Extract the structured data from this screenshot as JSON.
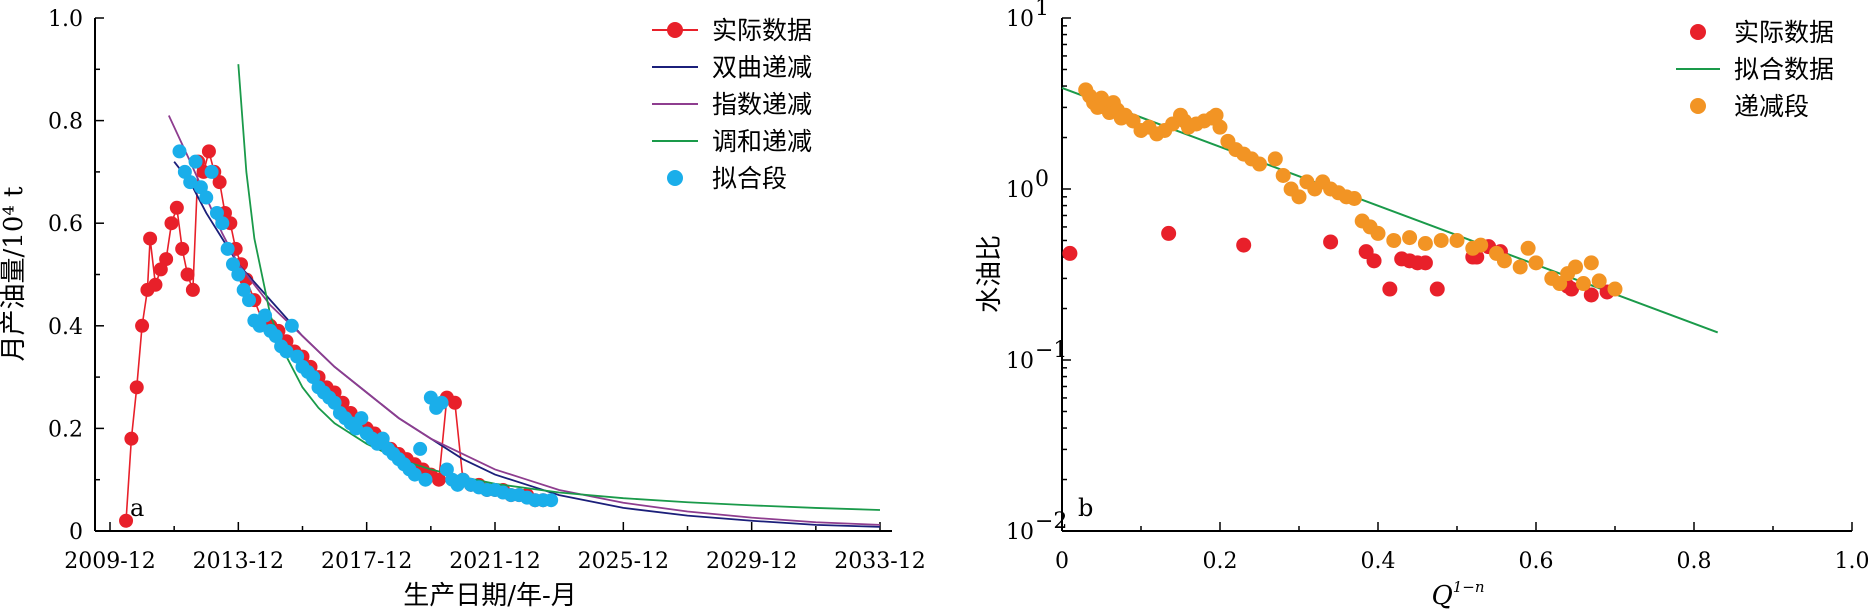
{
  "chart_data": [
    {
      "type": "line",
      "panel_label": "a",
      "xlabel": "生产日期/年-月",
      "ylabel": "月产油量/10⁴ t",
      "x_tick_labels": [
        "2009-12",
        "2013-12",
        "2017-12",
        "2021-12",
        "2025-12",
        "2029-12",
        "2033-12"
      ],
      "y_tick_labels": [
        "0",
        "0.2",
        "0.4",
        "0.6",
        "0.8",
        "1.0"
      ],
      "xlim": [
        "2009-12",
        "2033-12"
      ],
      "ylim": [
        0,
        1.0
      ],
      "legend_position": "top-right",
      "series": [
        {
          "name": "实际数据",
          "kind": "line-marker",
          "color": "#e8202a",
          "x": [
            "2010-06",
            "2010-08",
            "2010-10",
            "2010-12",
            "2011-02",
            "2011-03",
            "2011-05",
            "2011-07",
            "2011-09",
            "2011-11",
            "2012-01",
            "2012-03",
            "2012-05",
            "2012-07",
            "2012-09",
            "2012-11",
            "2013-01",
            "2013-03",
            "2013-05",
            "2013-07",
            "2013-09",
            "2013-11",
            "2014-01",
            "2014-03",
            "2014-06",
            "2014-09",
            "2014-12",
            "2015-03",
            "2015-06",
            "2015-09",
            "2015-12",
            "2016-03",
            "2016-06",
            "2016-09",
            "2016-12",
            "2017-03",
            "2017-06",
            "2017-09",
            "2017-12",
            "2018-03",
            "2018-06",
            "2018-09",
            "2018-12",
            "2019-03",
            "2019-06",
            "2019-09",
            "2019-12",
            "2020-03",
            "2020-06",
            "2020-09",
            "2020-12",
            "2021-03",
            "2021-06",
            "2021-09",
            "2021-12",
            "2022-03",
            "2022-06",
            "2022-09",
            "2022-12",
            "2023-03",
            "2023-06"
          ],
          "y": [
            0.02,
            0.18,
            0.28,
            0.4,
            0.47,
            0.57,
            0.48,
            0.51,
            0.53,
            0.6,
            0.63,
            0.55,
            0.5,
            0.47,
            0.72,
            0.7,
            0.74,
            0.7,
            0.68,
            0.62,
            0.6,
            0.55,
            0.52,
            0.49,
            0.45,
            0.41,
            0.4,
            0.39,
            0.37,
            0.35,
            0.34,
            0.32,
            0.3,
            0.28,
            0.27,
            0.25,
            0.23,
            0.21,
            0.2,
            0.19,
            0.17,
            0.16,
            0.15,
            0.14,
            0.13,
            0.12,
            0.11,
            0.1,
            0.26,
            0.25,
            0.1,
            0.09,
            0.09,
            0.08,
            0.08,
            0.08,
            0.07,
            0.07,
            0.07,
            0.06,
            0.06
          ]
        },
        {
          "name": "双曲递减",
          "kind": "line",
          "color": "#1b1f7a",
          "x": [
            "2011-12",
            "2012-06",
            "2012-12",
            "2013-06",
            "2013-12",
            "2014-12",
            "2015-12",
            "2016-12",
            "2017-12",
            "2018-12",
            "2019-12",
            "2020-12",
            "2021-12",
            "2022-12",
            "2023-12",
            "2025-12",
            "2027-12",
            "2029-12",
            "2031-12",
            "2033-12"
          ],
          "y": [
            0.72,
            0.68,
            0.62,
            0.57,
            0.52,
            0.45,
            0.38,
            0.32,
            0.27,
            0.22,
            0.18,
            0.14,
            0.11,
            0.09,
            0.07,
            0.045,
            0.03,
            0.02,
            0.012,
            0.008
          ]
        },
        {
          "name": "指数递减",
          "kind": "line",
          "color": "#8e3d8f",
          "x": [
            "2011-10",
            "2012-06",
            "2012-12",
            "2013-06",
            "2013-12",
            "2014-12",
            "2015-12",
            "2016-12",
            "2017-12",
            "2018-12",
            "2019-12",
            "2020-12",
            "2021-12",
            "2022-12",
            "2023-12",
            "2025-12",
            "2027-12",
            "2029-12",
            "2031-12",
            "2033-12"
          ],
          "y": [
            0.81,
            0.72,
            0.65,
            0.58,
            0.52,
            0.44,
            0.38,
            0.32,
            0.27,
            0.22,
            0.18,
            0.15,
            0.12,
            0.1,
            0.08,
            0.055,
            0.038,
            0.026,
            0.017,
            0.012
          ]
        },
        {
          "name": "调和递减",
          "kind": "line",
          "color": "#1a9a4a",
          "x": [
            "2013-12",
            "2014-03",
            "2014-06",
            "2014-12",
            "2015-06",
            "2015-12",
            "2016-06",
            "2016-12",
            "2017-12",
            "2018-12",
            "2019-12",
            "2020-12",
            "2021-12",
            "2023-12",
            "2025-12",
            "2027-12",
            "2029-12",
            "2031-12",
            "2033-12"
          ],
          "y": [
            0.91,
            0.7,
            0.57,
            0.42,
            0.34,
            0.28,
            0.24,
            0.21,
            0.17,
            0.14,
            0.12,
            0.105,
            0.092,
            0.075,
            0.064,
            0.056,
            0.05,
            0.045,
            0.041
          ]
        },
        {
          "name": "拟合段",
          "kind": "scatter",
          "color": "#1aaeea",
          "x": [
            "2012-02",
            "2012-04",
            "2012-06",
            "2012-08",
            "2012-10",
            "2012-12",
            "2013-02",
            "2013-04",
            "2013-06",
            "2013-08",
            "2013-10",
            "2013-12",
            "2014-02",
            "2014-04",
            "2014-06",
            "2014-08",
            "2014-10",
            "2014-12",
            "2015-02",
            "2015-04",
            "2015-06",
            "2015-08",
            "2015-10",
            "2015-12",
            "2016-02",
            "2016-04",
            "2016-06",
            "2016-08",
            "2016-10",
            "2016-12",
            "2017-02",
            "2017-04",
            "2017-06",
            "2017-08",
            "2017-10",
            "2017-12",
            "2018-02",
            "2018-04",
            "2018-06",
            "2018-08",
            "2018-10",
            "2018-12",
            "2019-02",
            "2019-04",
            "2019-06",
            "2019-08",
            "2019-10",
            "2019-12",
            "2020-02",
            "2020-04",
            "2020-06",
            "2020-08",
            "2020-10",
            "2020-12",
            "2021-03",
            "2021-06",
            "2021-09",
            "2021-12",
            "2022-03",
            "2022-06",
            "2022-09",
            "2022-12",
            "2023-03",
            "2023-06",
            "2023-09"
          ],
          "y": [
            0.74,
            0.7,
            0.68,
            0.72,
            0.67,
            0.65,
            0.7,
            0.62,
            0.6,
            0.55,
            0.52,
            0.5,
            0.47,
            0.45,
            0.41,
            0.4,
            0.42,
            0.39,
            0.38,
            0.36,
            0.35,
            0.4,
            0.34,
            0.32,
            0.31,
            0.3,
            0.28,
            0.27,
            0.26,
            0.25,
            0.23,
            0.22,
            0.21,
            0.2,
            0.22,
            0.19,
            0.18,
            0.17,
            0.18,
            0.16,
            0.15,
            0.14,
            0.13,
            0.12,
            0.11,
            0.16,
            0.1,
            0.26,
            0.24,
            0.25,
            0.12,
            0.1,
            0.09,
            0.1,
            0.09,
            0.085,
            0.08,
            0.08,
            0.075,
            0.07,
            0.07,
            0.065,
            0.06,
            0.06,
            0.06
          ]
        }
      ]
    },
    {
      "type": "scatter",
      "panel_label": "b",
      "xlabel": "Q",
      "xlabel_superscript": "1−n",
      "ylabel": "水油比",
      "y_scale": "log",
      "x_tick_labels": [
        "0",
        "0.2",
        "0.4",
        "0.6",
        "0.8",
        "1.0"
      ],
      "y_tick_labels": [
        {
          "base": "10",
          "exp": "−2"
        },
        {
          "base": "10",
          "exp": "−1"
        },
        {
          "base": "10",
          "exp": "0"
        },
        {
          "base": "10",
          "exp": "1"
        }
      ],
      "xlim": [
        0,
        1.0
      ],
      "ylim": [
        0.01,
        10
      ],
      "legend_position": "top-right",
      "series": [
        {
          "name": "实际数据",
          "kind": "scatter",
          "color": "#e8202a",
          "x": [
            0.01,
            0.135,
            0.23,
            0.34,
            0.385,
            0.395,
            0.415,
            0.43,
            0.44,
            0.45,
            0.46,
            0.475,
            0.52,
            0.525,
            0.54,
            0.555,
            0.64,
            0.645,
            0.67,
            0.69
          ],
          "y": [
            0.42,
            0.55,
            0.47,
            0.49,
            0.43,
            0.38,
            0.26,
            0.39,
            0.38,
            0.37,
            0.37,
            0.26,
            0.4,
            0.4,
            0.46,
            0.43,
            0.27,
            0.26,
            0.24,
            0.25
          ]
        },
        {
          "name": "拟合数据",
          "kind": "line",
          "color": "#1a9a4a",
          "x": [
            0.0,
            0.83
          ],
          "y": [
            3.9,
            0.145
          ]
        },
        {
          "name": "递减段",
          "kind": "scatter",
          "color": "#f29424",
          "x": [
            0.03,
            0.035,
            0.04,
            0.045,
            0.05,
            0.055,
            0.06,
            0.065,
            0.07,
            0.075,
            0.08,
            0.09,
            0.1,
            0.11,
            0.12,
            0.13,
            0.14,
            0.15,
            0.155,
            0.16,
            0.17,
            0.18,
            0.19,
            0.195,
            0.2,
            0.21,
            0.22,
            0.23,
            0.24,
            0.25,
            0.27,
            0.28,
            0.29,
            0.3,
            0.31,
            0.32,
            0.33,
            0.34,
            0.35,
            0.36,
            0.37,
            0.38,
            0.39,
            0.4,
            0.42,
            0.44,
            0.46,
            0.48,
            0.5,
            0.52,
            0.53,
            0.55,
            0.56,
            0.58,
            0.59,
            0.6,
            0.62,
            0.63,
            0.64,
            0.65,
            0.66,
            0.67,
            0.68,
            0.7
          ],
          "y": [
            3.8,
            3.5,
            3.2,
            3.0,
            3.4,
            3.0,
            2.8,
            3.2,
            2.9,
            2.6,
            2.7,
            2.5,
            2.2,
            2.3,
            2.1,
            2.2,
            2.4,
            2.7,
            2.5,
            2.3,
            2.4,
            2.5,
            2.6,
            2.7,
            2.3,
            1.9,
            1.7,
            1.6,
            1.5,
            1.4,
            1.5,
            1.2,
            1.0,
            0.9,
            1.1,
            1.0,
            1.1,
            1.0,
            0.95,
            0.9,
            0.88,
            0.65,
            0.6,
            0.55,
            0.5,
            0.52,
            0.48,
            0.5,
            0.5,
            0.45,
            0.47,
            0.42,
            0.38,
            0.35,
            0.45,
            0.37,
            0.3,
            0.28,
            0.32,
            0.35,
            0.28,
            0.37,
            0.29,
            0.26
          ]
        }
      ]
    }
  ]
}
